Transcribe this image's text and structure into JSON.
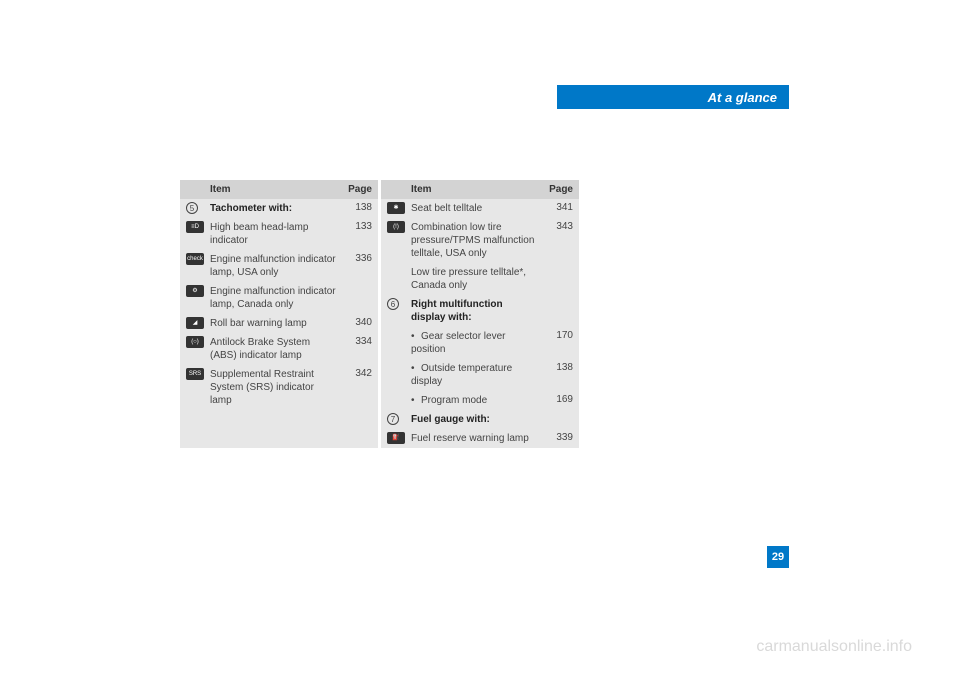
{
  "tab": {
    "label": "At a glance"
  },
  "headers": {
    "item": "Item",
    "page": "Page"
  },
  "leftCol": [
    {
      "marker_type": "num",
      "marker": "5",
      "text": "Tachometer with:",
      "bold": true,
      "page": "138"
    },
    {
      "marker_type": "glyph",
      "marker": "≡D",
      "text": "High beam head-lamp indicator",
      "page": "133"
    },
    {
      "marker_type": "glyph",
      "marker": "check engine",
      "text": "Engine malfunction indicator lamp, USA only",
      "page": "336"
    },
    {
      "marker_type": "glyph",
      "marker": "⚙",
      "text": "Engine malfunction indicator lamp, Canada only",
      "page": ""
    },
    {
      "marker_type": "glyph",
      "marker": "◢",
      "text": "Roll bar warning lamp",
      "page": "340"
    },
    {
      "marker_type": "glyph",
      "marker": "(○)",
      "text": "Antilock Brake System (ABS) indicator lamp",
      "page": "334"
    },
    {
      "marker_type": "glyph",
      "marker": "SRS",
      "text": "Supplemental Restraint System (SRS) indicator lamp",
      "page": "342"
    }
  ],
  "rightCol": [
    {
      "marker_type": "glyph",
      "marker": "✱",
      "text": "Seat belt telltale",
      "page": "341"
    },
    {
      "marker_type": "glyph",
      "marker": "(!)",
      "text": "Combination low tire pressure/TPMS malfunction telltale, USA only",
      "page": "343"
    },
    {
      "marker_type": "none",
      "marker": "",
      "text": "Low tire pressure telltale*, Canada only",
      "page": ""
    },
    {
      "marker_type": "num",
      "marker": "6",
      "text": "Right multifunction display with:",
      "bold": true,
      "page": ""
    },
    {
      "marker_type": "bullet",
      "marker": "•",
      "text": "Gear selector lever position",
      "page": "170"
    },
    {
      "marker_type": "bullet",
      "marker": "•",
      "text": "Outside temperature display",
      "page": "138"
    },
    {
      "marker_type": "bullet",
      "marker": "•",
      "text": "Program mode",
      "page": "169"
    },
    {
      "marker_type": "num",
      "marker": "7",
      "text": "Fuel gauge with:",
      "bold": true,
      "page": ""
    },
    {
      "marker_type": "glyph",
      "marker": "⛽",
      "text": "Fuel reserve warning lamp",
      "page": "339"
    }
  ],
  "pageNumber": "29",
  "watermark": "carmanualsonline.info"
}
